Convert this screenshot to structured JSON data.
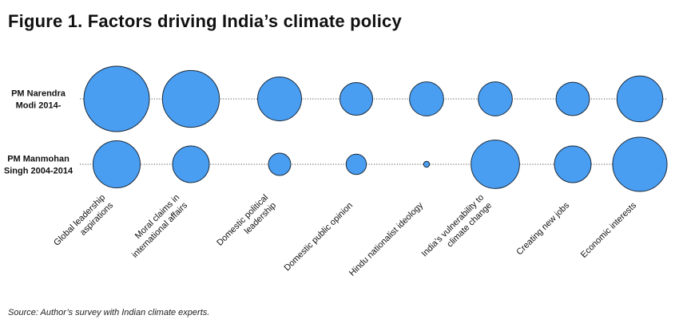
{
  "chart_data": {
    "type": "bubble",
    "title": "Figure 1. Factors driving India’s climate policy",
    "rows": [
      {
        "label": "PM Narendra Modi 2014-",
        "lines": [
          "PM Narendra",
          "Modi 2014-"
        ]
      },
      {
        "label": "PM Manmohan Singh 2004-2014",
        "lines": [
          "PM Manmohan",
          "Singh 2004-2014"
        ]
      }
    ],
    "categories": [
      {
        "label": "Global leadership aspirations",
        "lines": [
          "Global leadership",
          "aspirations"
        ]
      },
      {
        "label": "Moral claims in international affairs",
        "lines": [
          "Moral claims in",
          "international affairs"
        ]
      },
      {
        "label": "Domestic political leadership",
        "lines": [
          "Domestic political",
          "leadership"
        ]
      },
      {
        "label": "Domestic public opinion",
        "lines": [
          "Domestic public opinion"
        ]
      },
      {
        "label": "Hindu nationalist ideology",
        "lines": [
          "Hindu nationalist ideology"
        ]
      },
      {
        "label": "India’s vulnerability to climate change",
        "lines": [
          "India’s vulnerability to",
          "climate change"
        ]
      },
      {
        "label": "Creating new  jobs",
        "lines": [
          "Creating new  jobs"
        ]
      },
      {
        "label": "Economic interests",
        "lines": [
          "Economic interests"
        ]
      }
    ],
    "series": [
      {
        "values": [
          1.0,
          0.87,
          0.67,
          0.5,
          0.52,
          0.52,
          0.51,
          0.7
        ]
      },
      {
        "values": [
          0.72,
          0.56,
          0.34,
          0.31,
          0.09,
          0.74,
          0.56,
          0.83
        ]
      }
    ],
    "colors": {
      "bubble_fill": "#4a9ef2",
      "bubble_stroke": "#1a2a3a",
      "connector": "#555555"
    },
    "source": "Source: Author’s survey with Indian climate experts."
  }
}
